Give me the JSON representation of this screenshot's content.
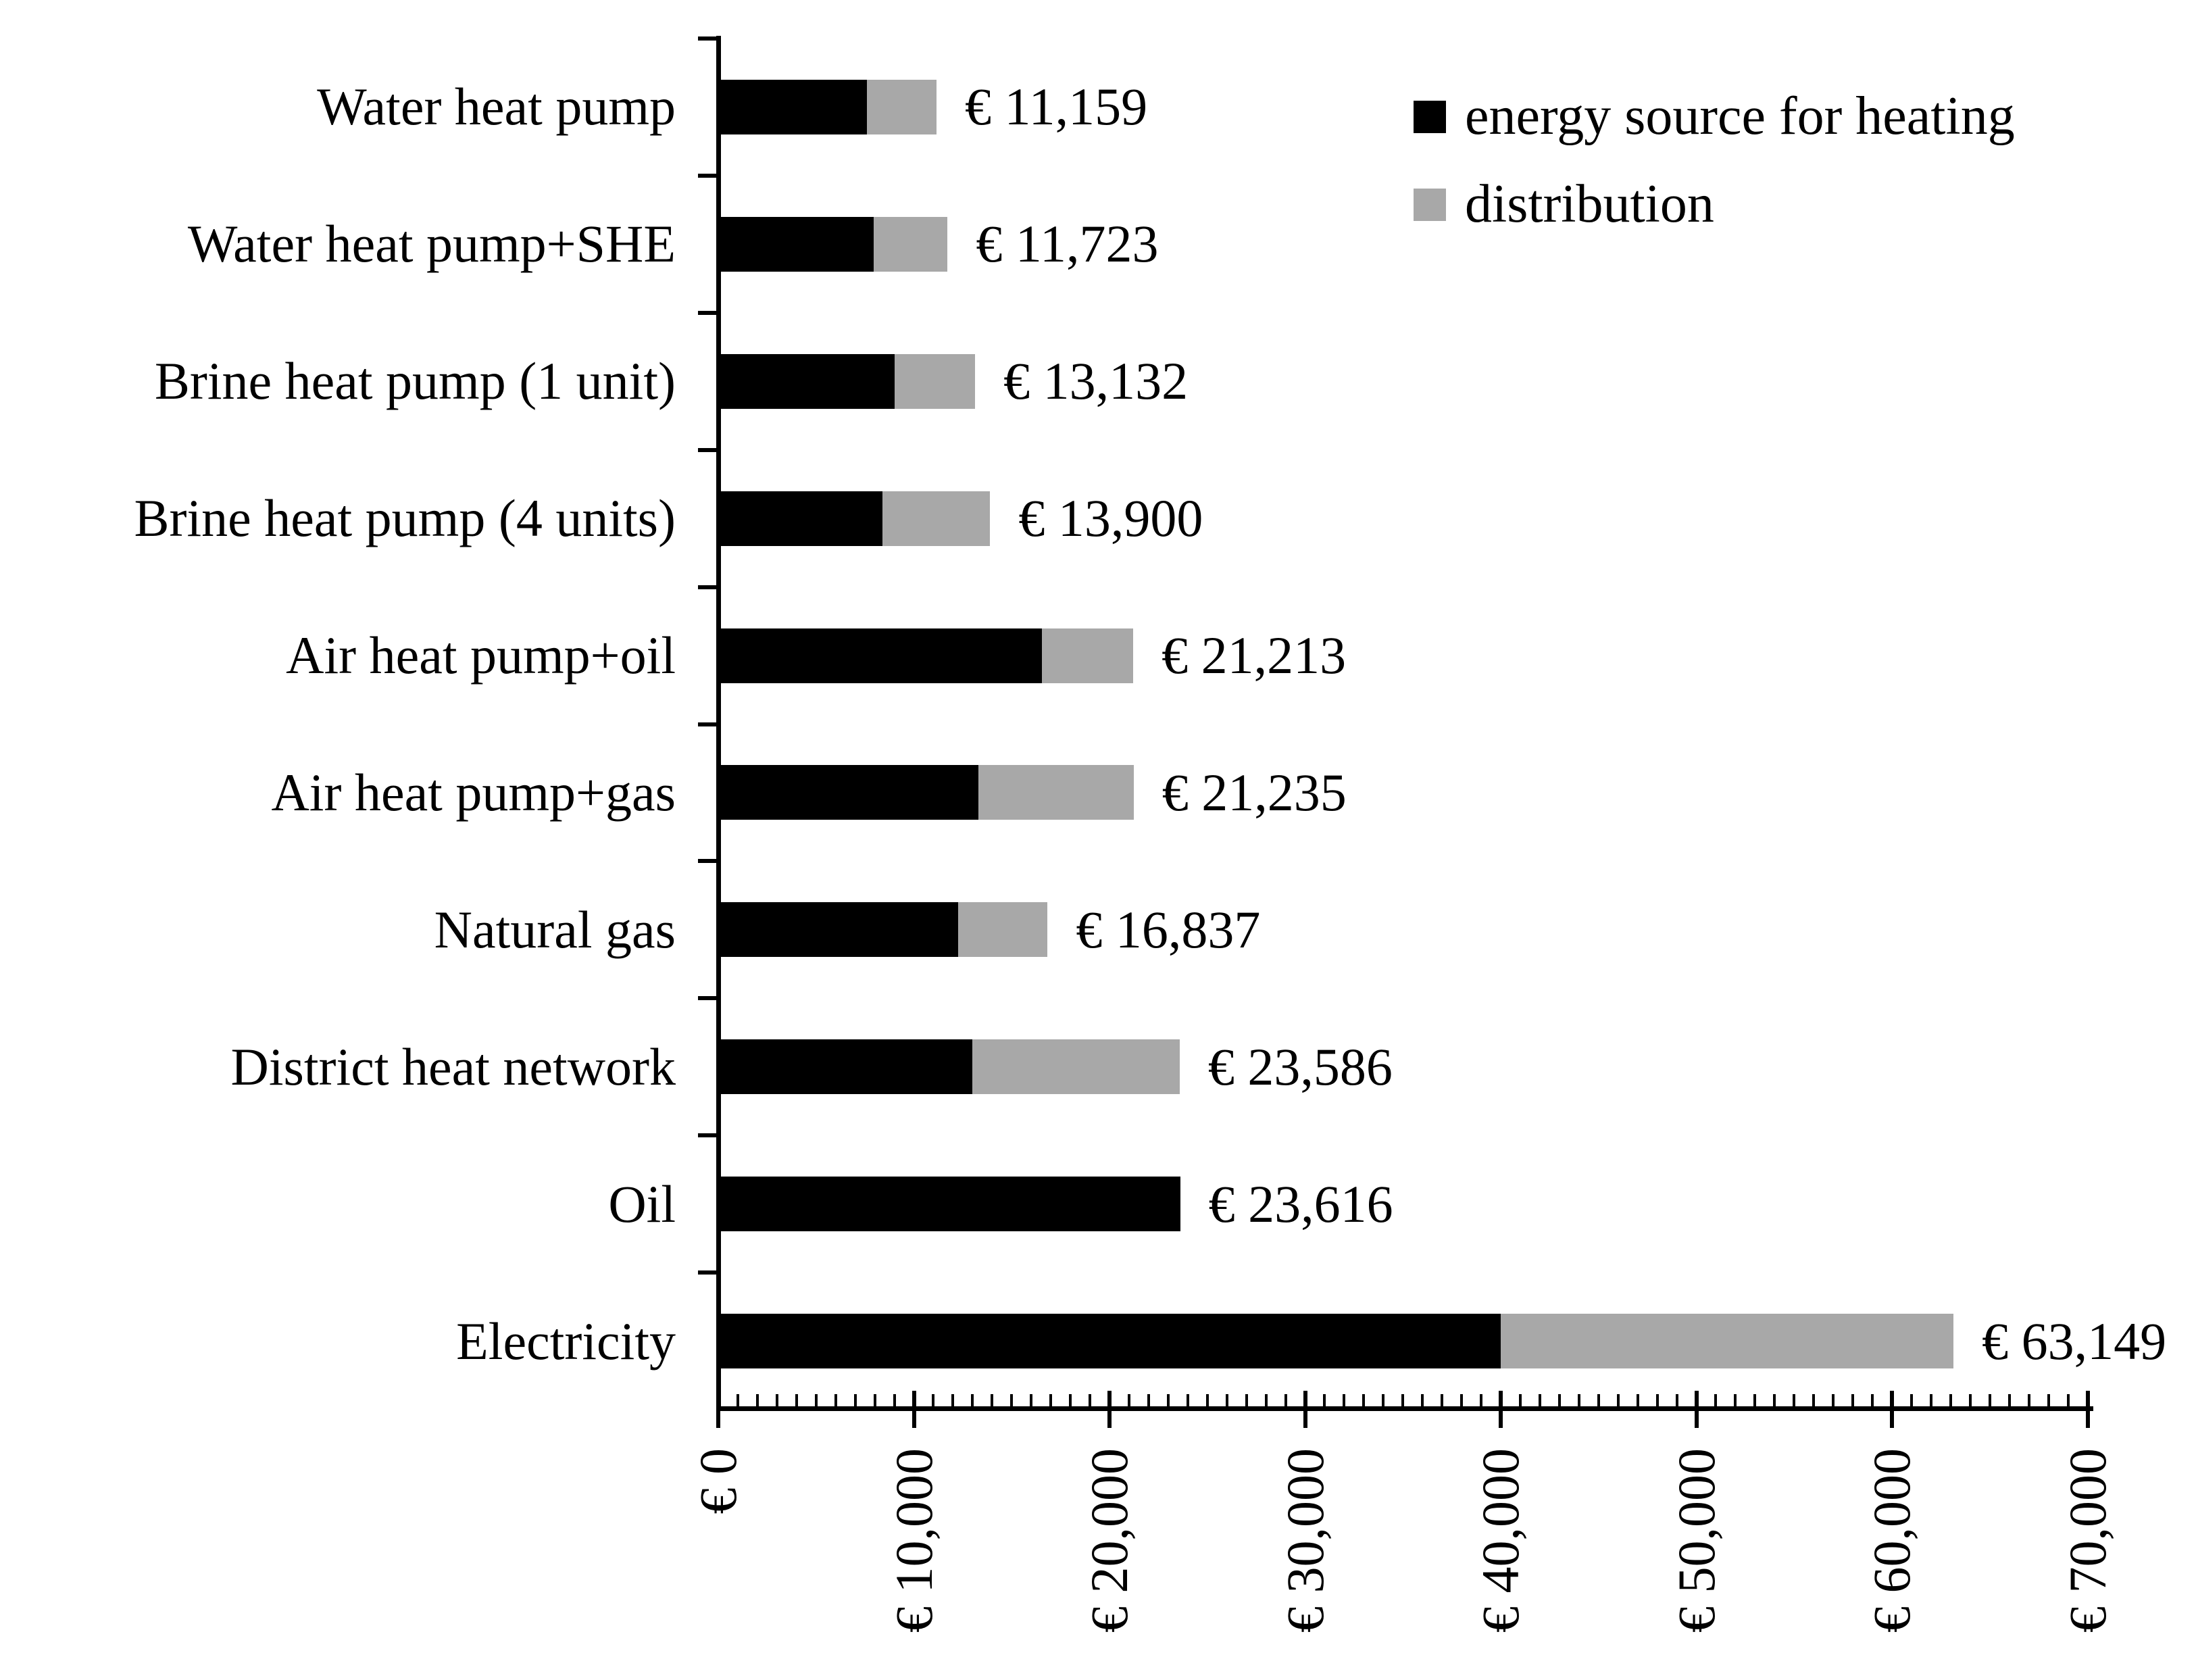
{
  "chart_data": {
    "type": "bar",
    "orientation": "horizontal",
    "stacked": true,
    "currency": "EUR",
    "title": "",
    "xlabel": "",
    "ylabel": "",
    "grid": false,
    "categories": [
      "Water heat pump",
      "Water heat pump+SHE",
      "Brine heat pump (1 unit)",
      "Brine heat pump (4 units)",
      "Air heat pump+oil",
      "Air heat pump+gas",
      "Natural gas",
      "District heat network",
      "Oil",
      "Electricity"
    ],
    "series": [
      {
        "name": "energy source for heating",
        "color": "#000000",
        "values": [
          7600,
          7950,
          9000,
          8400,
          16550,
          13300,
          12250,
          13000,
          23616,
          40000
        ]
      },
      {
        "name": "distribution",
        "color": "#a8a8a8",
        "values": [
          3559,
          3773,
          4132,
          5500,
          4663,
          7935,
          4587,
          10586,
          0,
          23149
        ]
      }
    ],
    "totals": [
      11159,
      11723,
      13132,
      13900,
      21213,
      21235,
      16837,
      23586,
      23616,
      63149
    ],
    "total_labels": [
      "€ 11,159",
      "€ 11,723",
      "€ 13,132",
      "€ 13,900",
      "€ 21,213",
      "€ 21,235",
      "€ 16,837",
      "€ 23,586",
      "€ 23,616",
      "€ 63,149"
    ],
    "x_axis": {
      "min": 0,
      "max": 70000,
      "major_tick_step": 10000,
      "minor_tick_step": 1000,
      "tick_labels": [
        "€ 0",
        "€ 10,000",
        "€ 20,000",
        "€ 30,000",
        "€ 40,000",
        "€ 50,000",
        "€ 60,000",
        "€ 70,000"
      ],
      "tick_label_rotation_deg": 90
    },
    "legend": {
      "position": "top-right",
      "items": [
        {
          "label": "energy source for heating",
          "color": "#000000"
        },
        {
          "label": "distribution",
          "color": "#a8a8a8"
        }
      ]
    },
    "colors": {
      "bar_black": "#000000",
      "bar_gray": "#a8a8a8",
      "axis": "#000000",
      "background": "#ffffff"
    }
  }
}
